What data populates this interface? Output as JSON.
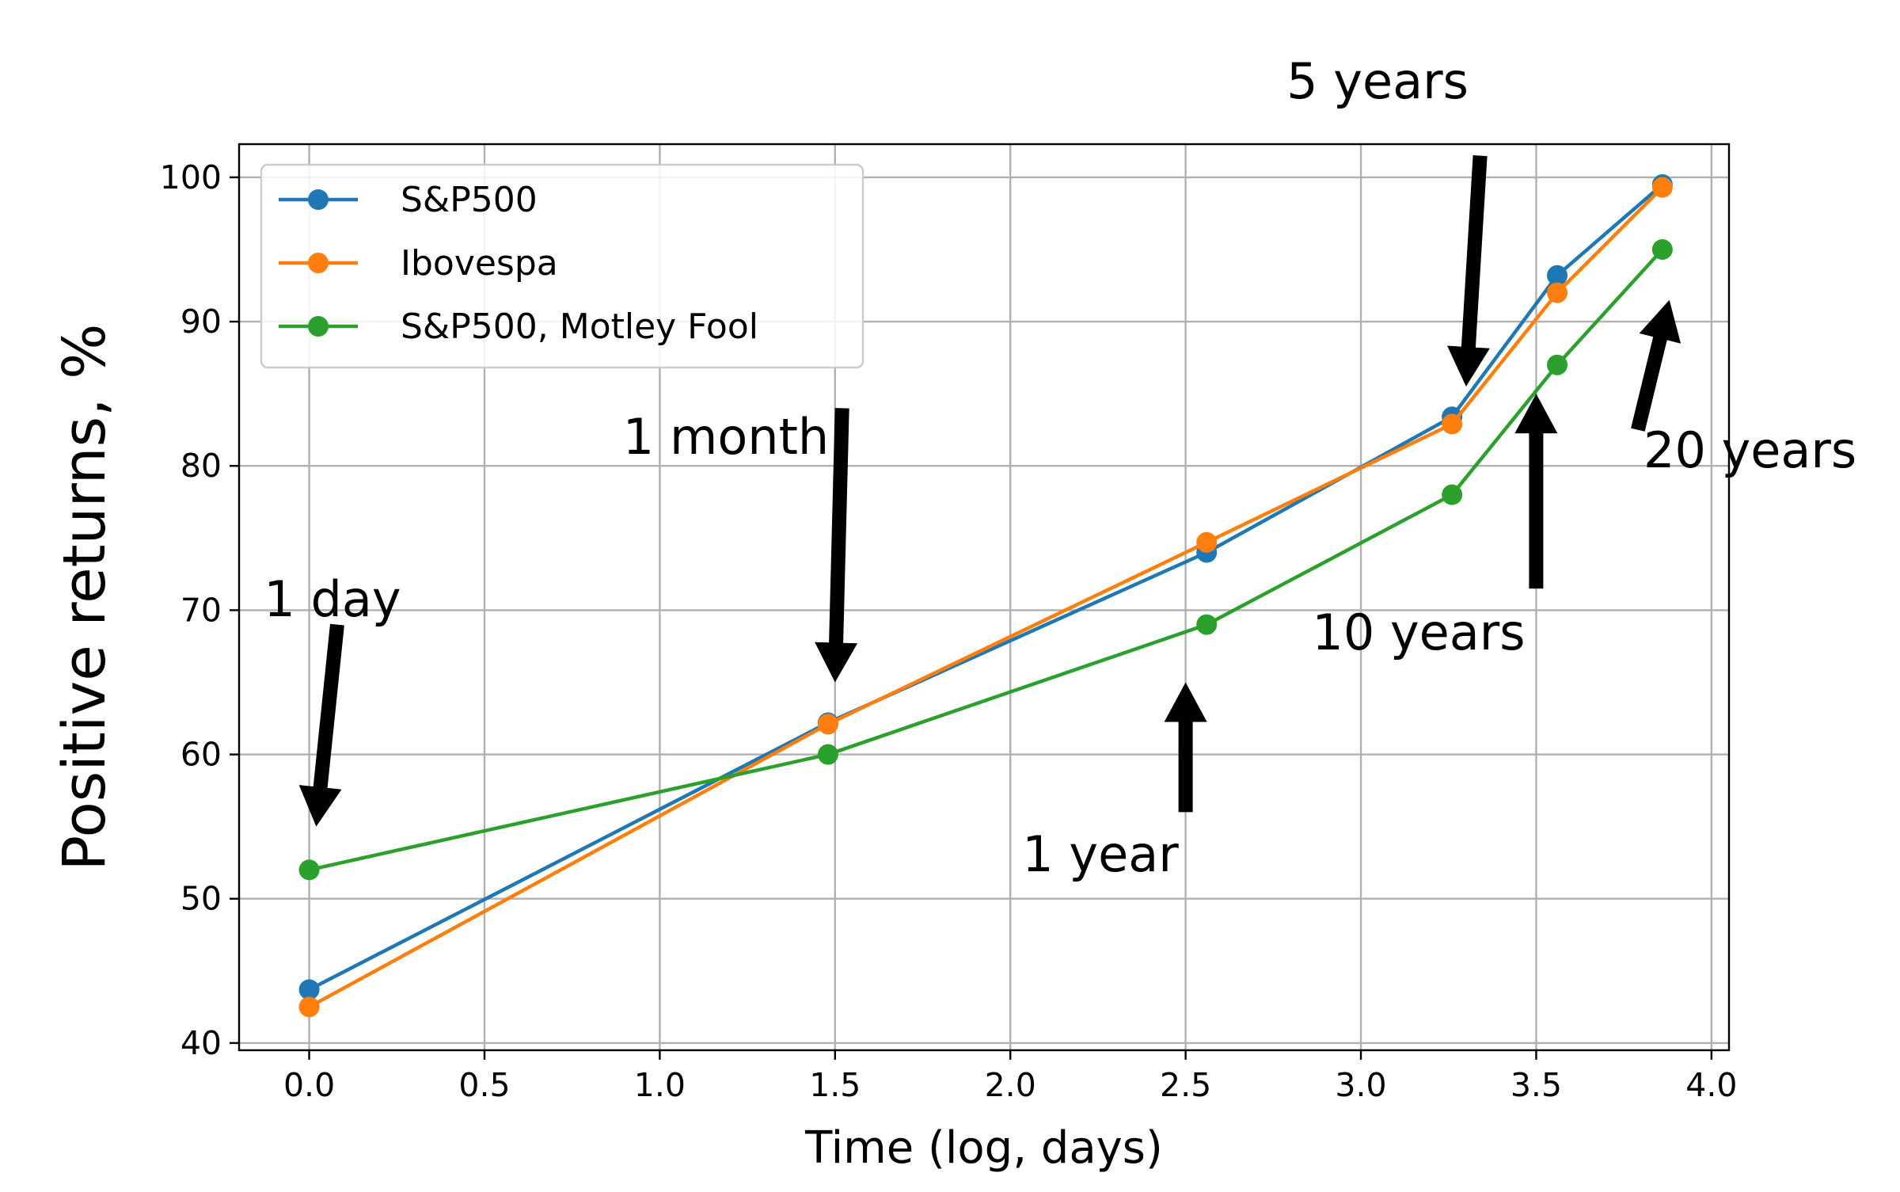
{
  "chart_data": {
    "type": "line",
    "title": "",
    "xlabel": "Time (log, days)",
    "ylabel": "Positive returns, %",
    "xlim": [
      -0.2,
      4.05
    ],
    "ylim": [
      39.5,
      102.3
    ],
    "xticks": [
      0.0,
      0.5,
      1.0,
      1.5,
      2.0,
      2.5,
      3.0,
      3.5,
      4.0
    ],
    "xtick_labels": [
      "0.0",
      "0.5",
      "1.0",
      "1.5",
      "2.0",
      "2.5",
      "3.0",
      "3.5",
      "4.0"
    ],
    "yticks": [
      40,
      50,
      60,
      70,
      80,
      90,
      100
    ],
    "ytick_labels": [
      "40",
      "50",
      "60",
      "70",
      "80",
      "90",
      "100"
    ],
    "grid": true,
    "legend_position": "upper-left",
    "series": [
      {
        "name": "S&P500",
        "color": "#1f77b4",
        "x": [
          0.0,
          1.48,
          2.56,
          3.26,
          3.56,
          3.86
        ],
        "y": [
          43.7,
          62.2,
          74.0,
          83.4,
          93.2,
          99.5
        ]
      },
      {
        "name": "Ibovespa",
        "color": "#ff7f0e",
        "x": [
          0.0,
          1.48,
          2.56,
          3.26,
          3.56,
          3.86
        ],
        "y": [
          42.5,
          62.1,
          74.7,
          82.9,
          92.0,
          99.3
        ]
      },
      {
        "name": "S&P500, Motley Fool",
        "color": "#2ca02c",
        "x": [
          0.0,
          1.48,
          2.56,
          3.26,
          3.56,
          3.86
        ],
        "y": [
          52.0,
          60.0,
          69.0,
          78.0,
          87.0,
          95.0
        ]
      }
    ],
    "annotations": [
      {
        "text": "1 day",
        "tail": [
          0.08,
          69.0
        ],
        "head": [
          0.02,
          55.0
        ]
      },
      {
        "text": "1 month",
        "tail": [
          1.52,
          84.0
        ],
        "head": [
          1.5,
          65.0
        ]
      },
      {
        "text": "1 year",
        "tail": [
          2.5,
          56.0
        ],
        "head": [
          2.5,
          65.0
        ]
      },
      {
        "text": "5 years",
        "tail": [
          3.34,
          101.5
        ],
        "head": [
          3.3,
          85.5
        ]
      },
      {
        "text": "10 years",
        "tail": [
          3.5,
          71.5
        ],
        "head": [
          3.5,
          85.0
        ]
      },
      {
        "text": "20 years",
        "tail": [
          3.79,
          82.5
        ],
        "head": [
          3.88,
          91.5
        ]
      }
    ]
  }
}
